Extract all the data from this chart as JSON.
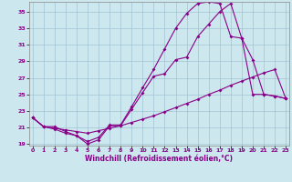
{
  "xlabel": "Windchill (Refroidissement éolien,°C)",
  "bg_color": "#cce8ee",
  "line_color": "#880088",
  "grid_color": "#99bbcc",
  "xlim_min": 0,
  "xlim_max": 23,
  "ylim_min": 19,
  "ylim_max": 36,
  "xticks": [
    0,
    1,
    2,
    3,
    4,
    5,
    6,
    7,
    8,
    9,
    10,
    11,
    12,
    13,
    14,
    15,
    16,
    17,
    18,
    19,
    20,
    21,
    22,
    23
  ],
  "yticks": [
    19,
    21,
    23,
    25,
    27,
    29,
    31,
    33,
    35
  ],
  "curve1_x": [
    0,
    1,
    2,
    3,
    4,
    5,
    6,
    7,
    8,
    9,
    10,
    11,
    12,
    13,
    14,
    15,
    16,
    17,
    18,
    19,
    20,
    21,
    22,
    23
  ],
  "curve1_y": [
    22.2,
    21.1,
    20.8,
    20.3,
    20.0,
    19.0,
    19.5,
    21.2,
    21.2,
    23.2,
    25.2,
    27.2,
    27.5,
    29.2,
    29.5,
    32.0,
    33.5,
    35.0,
    36.0,
    31.8,
    29.2,
    25.0,
    24.8,
    24.5
  ],
  "curve2_x": [
    0,
    1,
    2,
    3,
    4,
    5,
    6,
    7,
    8,
    9,
    10,
    11,
    12,
    13,
    14,
    15,
    16,
    17,
    18,
    19,
    20,
    21,
    22,
    23
  ],
  "curve2_y": [
    22.2,
    21.1,
    21.1,
    20.5,
    20.0,
    19.3,
    19.8,
    21.3,
    21.3,
    23.5,
    25.8,
    28.0,
    30.5,
    33.0,
    34.8,
    36.0,
    36.2,
    36.0,
    32.0,
    31.8,
    25.0,
    25.0,
    24.8,
    24.5
  ],
  "curve3_x": [
    0,
    1,
    2,
    3,
    4,
    5,
    6,
    7,
    8,
    9,
    10,
    11,
    12,
    13,
    14,
    15,
    16,
    17,
    18,
    19,
    20,
    21,
    22,
    23
  ],
  "curve3_y": [
    22.2,
    21.1,
    20.9,
    20.7,
    20.5,
    20.3,
    20.6,
    20.9,
    21.2,
    21.6,
    22.0,
    22.4,
    22.9,
    23.4,
    23.9,
    24.4,
    25.0,
    25.5,
    26.1,
    26.6,
    27.1,
    27.6,
    28.0,
    24.5
  ],
  "tick_fontsize": 4.5,
  "xlabel_fontsize": 5.5,
  "marker_size": 2.0,
  "line_width": 0.8
}
